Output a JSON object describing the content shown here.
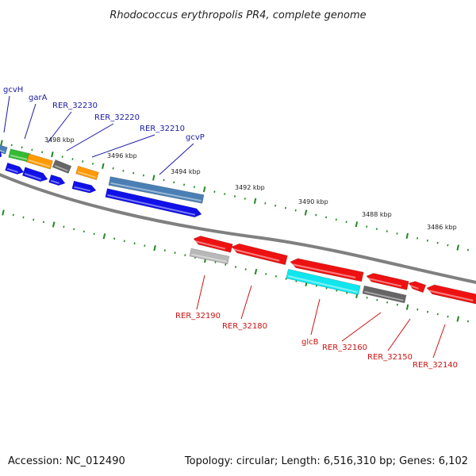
{
  "title": "Rhodococcus erythropolis PR4, complete genome",
  "footer": {
    "accession": "Accession: NC_012490",
    "summary": "Topology: circular; Length: 6,516,310 bp; Genes: 6,102"
  },
  "ruler": [
    "3498 kbp",
    "3496 kbp",
    "3494 kbp",
    "3492 kbp",
    "3490 kbp",
    "3488 kbp",
    "3486 kbp"
  ],
  "labels_top": [
    "gcvH",
    "garA",
    "RER_32230",
    "RER_32220",
    "RER_32210",
    "gcvP"
  ],
  "labels_bottom": [
    "RER_32190",
    "RER_32180",
    "glcB",
    "RER_32160",
    "RER_32150",
    "RER_32140"
  ],
  "colors": {
    "forward_label": "#1a1aa8",
    "reverse_label": "#cc1111",
    "blue": "#1010e8",
    "steel": "#4a7fb5",
    "red": "#ee1111",
    "green": "#33bb33",
    "orange": "#ff9900",
    "gray": "#666666",
    "lightgray": "#b8b8b8",
    "cyan": "#11e6ee",
    "backbone": "#888888",
    "tick": "#228822"
  }
}
